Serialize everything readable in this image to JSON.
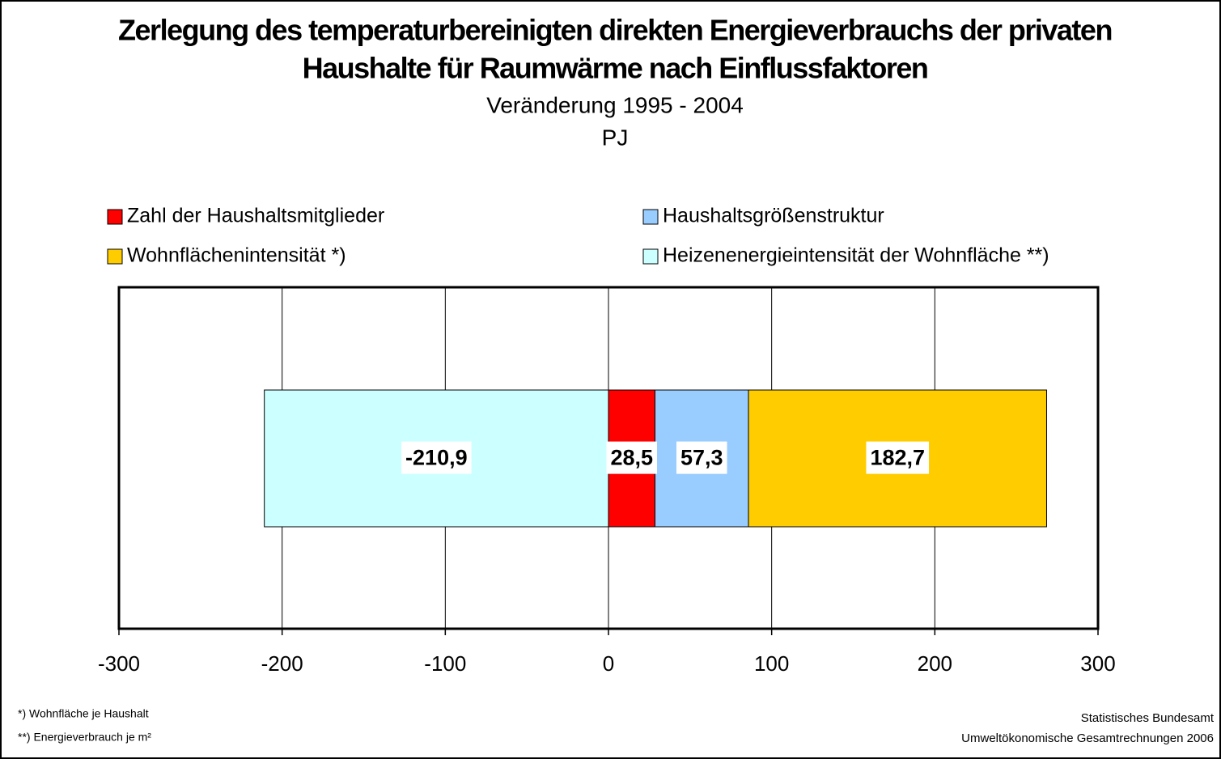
{
  "chart_data": {
    "type": "stacked_barh",
    "title": [
      "Zerlegung des temperaturbereinigten direkten Energieverbrauchs der privaten",
      "Haushalte für Raumwärme nach Einflussfaktoren"
    ],
    "subtitle": [
      "Veränderung 1995 - 2004",
      "PJ"
    ],
    "series": [
      {
        "name": "Zahl der Haushaltsmitglieder",
        "color": "#ff0000",
        "values": [
          28.5
        ],
        "value_labels": [
          "28,5"
        ]
      },
      {
        "name": "Haushaltsgrößenstruktur",
        "color": "#99ccff",
        "values": [
          57.3
        ],
        "value_labels": [
          "57,3"
        ]
      },
      {
        "name": "Wohnflächenintensität *)",
        "color": "#ffcc00",
        "values": [
          182.7
        ],
        "value_labels": [
          "182,7"
        ]
      },
      {
        "name": "Heizenenergieintensität der Wohnfläche **)",
        "color": "#ccffff",
        "values": [
          -210.9
        ],
        "value_labels": [
          "-210,9"
        ]
      }
    ],
    "xlim": [
      -300,
      300
    ],
    "xticks": [
      -300,
      -200,
      -100,
      0,
      100,
      200,
      300
    ],
    "grid": true,
    "legend": "top",
    "footnotes": [
      "*) Wohnfläche je Haushalt",
      "**) Energieverbrauch je m²"
    ],
    "source": [
      "Statistisches Bundesamt",
      "Umweltökonomische Gesamtrechnungen 2006"
    ]
  }
}
